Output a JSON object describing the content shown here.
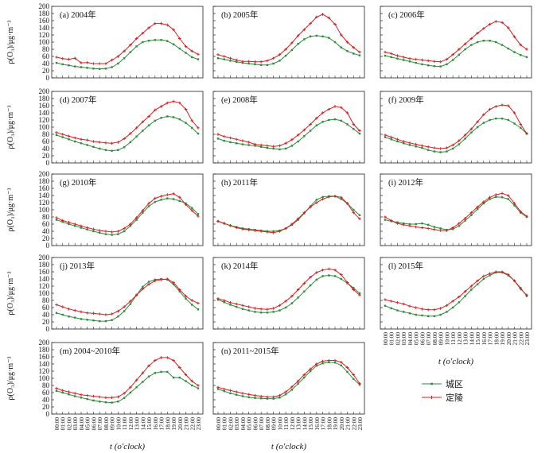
{
  "figure": {
    "ylabel": "ρ(O₃)/μg·m⁻³",
    "xlabel": "t (o'clock)"
  },
  "legend": {
    "items": [
      {
        "label": "城区",
        "color": "#2e8b3a"
      },
      {
        "label": "定陵",
        "color": "#d42020"
      }
    ]
  },
  "chart_data": {
    "type": "line",
    "x": [
      "00:00",
      "01:00",
      "02:00",
      "03:00",
      "04:00",
      "05:00",
      "06:00",
      "07:00",
      "08:00",
      "09:00",
      "10:00",
      "11:00",
      "12:00",
      "13:00",
      "14:00",
      "15:00",
      "16:00",
      "17:00",
      "18:00",
      "19:00",
      "20:00",
      "21:00",
      "22:00",
      "23:00"
    ],
    "ylim": [
      0,
      200
    ],
    "yticks": [
      0,
      20,
      40,
      60,
      80,
      100,
      120,
      140,
      160,
      180,
      200
    ],
    "grid": false,
    "legend_position": "bottom-right",
    "panels": [
      {
        "title": "(a)  2004年",
        "series": [
          {
            "name": "城区",
            "values": [
              42,
              38,
              35,
              32,
              30,
              28,
              26,
              25,
              26,
              30,
              40,
              55,
              72,
              88,
              100,
              104,
              106,
              106,
              103,
              94,
              82,
              70,
              58,
              52
            ]
          },
          {
            "name": "定陵",
            "values": [
              58,
              54,
              52,
              55,
              42,
              43,
              40,
              40,
              40,
              50,
              60,
              75,
              92,
              110,
              125,
              140,
              152,
              152,
              148,
              135,
              110,
              88,
              75,
              66
            ]
          }
        ]
      },
      {
        "title": "(b)  2005年",
        "series": [
          {
            "name": "城区",
            "values": [
              55,
              52,
              48,
              45,
              42,
              40,
              38,
              36,
              36,
              40,
              48,
              62,
              78,
              95,
              108,
              116,
              118,
              116,
              112,
              100,
              85,
              75,
              68,
              63
            ]
          },
          {
            "name": "定陵",
            "values": [
              65,
              60,
              55,
              50,
              46,
              46,
              45,
              45,
              48,
              55,
              65,
              80,
              98,
              118,
              135,
              152,
              170,
              178,
              168,
              150,
              120,
              100,
              85,
              72
            ]
          }
        ]
      },
      {
        "title": "(c)  2006年",
        "series": [
          {
            "name": "城区",
            "values": [
              62,
              58,
              54,
              50,
              46,
              42,
              38,
              35,
              33,
              32,
              38,
              50,
              65,
              80,
              92,
              100,
              104,
              104,
              100,
              92,
              82,
              72,
              64,
              58
            ]
          },
          {
            "name": "定陵",
            "values": [
              72,
              68,
              62,
              58,
              54,
              52,
              50,
              48,
              46,
              45,
              52,
              65,
              80,
              95,
              110,
              125,
              138,
              150,
              158,
              155,
              140,
              115,
              92,
              80
            ]
          }
        ]
      },
      {
        "title": "(d)  2007年",
        "series": [
          {
            "name": "城区",
            "values": [
              78,
              72,
              66,
              60,
              55,
              50,
              45,
              40,
              36,
              34,
              36,
              44,
              58,
              74,
              90,
              105,
              118,
              126,
              130,
              128,
              122,
              112,
              98,
              82
            ]
          },
          {
            "name": "定陵",
            "values": [
              85,
              80,
              75,
              70,
              66,
              64,
              60,
              58,
              56,
              55,
              58,
              68,
              82,
              98,
              115,
              130,
              148,
              158,
              168,
              172,
              168,
              150,
              118,
              98
            ]
          }
        ]
      },
      {
        "title": "(e)  2008年",
        "series": [
          {
            "name": "城区",
            "values": [
              68,
              62,
              58,
              55,
              52,
              50,
              48,
              45,
              42,
              40,
              38,
              40,
              48,
              60,
              75,
              90,
              105,
              115,
              120,
              122,
              118,
              108,
              95,
              82
            ]
          },
          {
            "name": "定陵",
            "values": [
              80,
              74,
              70,
              66,
              62,
              58,
              52,
              50,
              48,
              46,
              48,
              55,
              65,
              78,
              92,
              108,
              125,
              140,
              150,
              158,
              155,
              140,
              108,
              90
            ]
          }
        ]
      },
      {
        "title": "(f)  2009年",
        "series": [
          {
            "name": "城区",
            "values": [
              72,
              66,
              60,
              55,
              50,
              46,
              42,
              36,
              32,
              30,
              32,
              40,
              52,
              68,
              85,
              100,
              112,
              120,
              124,
              124,
              120,
              110,
              98,
              82
            ]
          },
          {
            "name": "定陵",
            "values": [
              78,
              72,
              66,
              60,
              56,
              52,
              48,
              45,
              42,
              40,
              42,
              50,
              62,
              78,
              95,
              115,
              135,
              150,
              158,
              162,
              160,
              140,
              108,
              82
            ]
          }
        ]
      },
      {
        "title": "(g)  2010年",
        "series": [
          {
            "name": "城区",
            "values": [
              72,
              66,
              60,
              55,
              50,
              45,
              40,
              36,
              32,
              30,
              32,
              40,
              55,
              72,
              92,
              110,
              122,
              128,
              132,
              130,
              125,
              118,
              105,
              88
            ]
          },
          {
            "name": "定陵",
            "values": [
              78,
              70,
              65,
              60,
              55,
              50,
              46,
              42,
              40,
              38,
              40,
              48,
              60,
              78,
              98,
              118,
              132,
              138,
              142,
              145,
              135,
              115,
              98,
              82
            ]
          }
        ]
      },
      {
        "title": "(h)  2011年",
        "series": [
          {
            "name": "城区",
            "values": [
              68,
              62,
              56,
              52,
              48,
              46,
              44,
              42,
              40,
              40,
              42,
              48,
              58,
              72,
              90,
              110,
              128,
              136,
              138,
              138,
              130,
              118,
              100,
              85
            ]
          },
          {
            "name": "定陵",
            "values": [
              68,
              62,
              56,
              50,
              46,
              44,
              42,
              40,
              38,
              36,
              40,
              48,
              60,
              75,
              92,
              108,
              120,
              130,
              136,
              138,
              135,
              118,
              92,
              75
            ]
          }
        ]
      },
      {
        "title": "(i)  2012年",
        "series": [
          {
            "name": "城区",
            "values": [
              72,
              68,
              65,
              62,
              60,
              60,
              62,
              58,
              52,
              48,
              44,
              46,
              55,
              70,
              85,
              102,
              118,
              130,
              136,
              135,
              130,
              112,
              92,
              80
            ]
          },
          {
            "name": "定陵",
            "values": [
              80,
              70,
              62,
              58,
              55,
              52,
              50,
              48,
              45,
              42,
              42,
              50,
              62,
              76,
              92,
              108,
              122,
              135,
              142,
              146,
              140,
              118,
              95,
              82
            ]
          }
        ]
      },
      {
        "title": "(j)  2013年",
        "series": [
          {
            "name": "城区",
            "values": [
              45,
              40,
              35,
              32,
              28,
              26,
              24,
              22,
              22,
              25,
              35,
              50,
              70,
              95,
              118,
              132,
              138,
              140,
              138,
              125,
              105,
              85,
              68,
              55
            ]
          },
          {
            "name": "定陵",
            "values": [
              68,
              62,
              56,
              52,
              48,
              45,
              44,
              42,
              40,
              42,
              50,
              62,
              78,
              95,
              112,
              125,
              135,
              138,
              140,
              130,
              110,
              92,
              80,
              72
            ]
          }
        ]
      },
      {
        "title": "(k)  2014年",
        "series": [
          {
            "name": "城区",
            "values": [
              82,
              75,
              68,
              62,
              56,
              52,
              48,
              46,
              46,
              48,
              52,
              60,
              72,
              88,
              105,
              122,
              138,
              148,
              150,
              148,
              140,
              128,
              115,
              100
            ]
          },
          {
            "name": "定陵",
            "values": [
              85,
              80,
              74,
              70,
              66,
              62,
              58,
              56,
              55,
              58,
              66,
              78,
              92,
              110,
              128,
              145,
              158,
              165,
              168,
              165,
              152,
              130,
              110,
              95
            ]
          }
        ]
      },
      {
        "title": "(l)  2015年",
        "series": [
          {
            "name": "城区",
            "values": [
              65,
              58,
              52,
              48,
              44,
              40,
              38,
              36,
              36,
              40,
              48,
              60,
              75,
              92,
              110,
              125,
              140,
              150,
              158,
              158,
              150,
              135,
              115,
              92
            ]
          },
          {
            "name": "定陵",
            "values": [
              82,
              78,
              74,
              70,
              64,
              60,
              56,
              54,
              54,
              58,
              66,
              78,
              90,
              105,
              120,
              135,
              148,
              155,
              160,
              160,
              152,
              135,
              112,
              95
            ]
          }
        ]
      },
      {
        "title": "(m)  2004~2010年",
        "series": [
          {
            "name": "城区",
            "values": [
              65,
              60,
              55,
              50,
              46,
              42,
              38,
              35,
              33,
              32,
              35,
              45,
              60,
              75,
              90,
              105,
              115,
              118,
              118,
              102,
              102,
              92,
              80,
              72
            ]
          },
          {
            "name": "定陵",
            "values": [
              72,
              66,
              62,
              58,
              54,
              52,
              50,
              48,
              46,
              46,
              48,
              58,
              75,
              95,
              115,
              135,
              150,
              158,
              158,
              150,
              130,
              110,
              92,
              80
            ]
          }
        ]
      },
      {
        "title": "(n)  2011~2015年",
        "series": [
          {
            "name": "城区",
            "values": [
              70,
              64,
              58,
              54,
              50,
              47,
              45,
              44,
              43,
              43,
              46,
              55,
              68,
              85,
              102,
              120,
              135,
              142,
              145,
              144,
              136,
              118,
              98,
              82
            ]
          },
          {
            "name": "定陵",
            "values": [
              75,
              70,
              66,
              62,
              58,
              55,
              52,
              50,
              48,
              48,
              52,
              62,
              76,
              92,
              110,
              126,
              140,
              148,
              150,
              150,
              145,
              130,
              110,
              85
            ]
          }
        ]
      }
    ]
  }
}
